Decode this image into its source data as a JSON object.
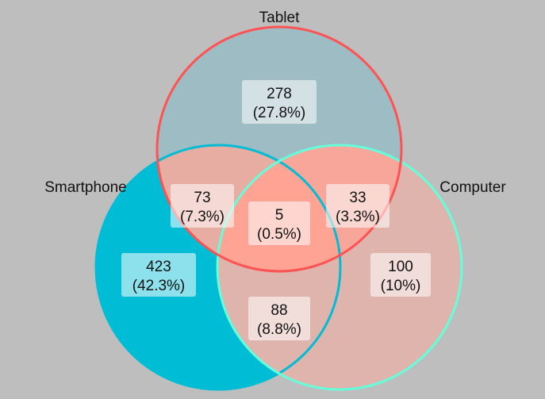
{
  "colors": {
    "background": "#bebebe",
    "smartphone": "#00bcd4",
    "tablet": "#ff5252",
    "computer": "#64ffda",
    "tablet_only_fill": "#9dbcc4",
    "smartphone_only_fill": "#00bcd4",
    "computer_only_fill": "#dfb4ad"
  },
  "sets": {
    "smartphone": "Smartphone",
    "tablet": "Tablet",
    "computer": "Computer"
  },
  "regions": {
    "tablet_only": {
      "count": "278",
      "pct": "(27.8%)"
    },
    "smartphone_only": {
      "count": "423",
      "pct": "(42.3%)"
    },
    "computer_only": {
      "count": "100",
      "pct": "(10%)"
    },
    "smartphone_tablet": {
      "count": "73",
      "pct": "(7.3%)"
    },
    "tablet_computer": {
      "count": "33",
      "pct": "(3.3%)"
    },
    "smartphone_computer": {
      "count": "88",
      "pct": "(8.8%)"
    },
    "all_three": {
      "count": "5",
      "pct": "(0.5%)"
    }
  }
}
